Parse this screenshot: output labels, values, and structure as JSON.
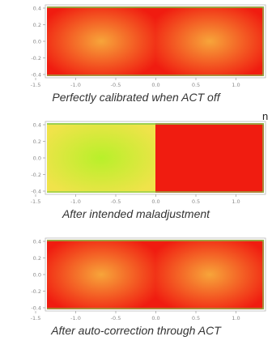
{
  "panels": [
    {
      "caption": "Perfectly calibrated when ACT off",
      "left_half": "warm",
      "right_half": "warm"
    },
    {
      "caption": "After intended maladjustment",
      "left_half": "cool",
      "right_half": "hot"
    },
    {
      "caption": "After auto-correction through ACT",
      "left_half": "warm",
      "right_half": "warm"
    }
  ],
  "axis": {
    "x_ticks": [
      "-1.5",
      "-1.0",
      "-0.5",
      "0.0",
      "0.5",
      "1.0"
    ],
    "y_ticks": [
      "0.4",
      "0.2",
      "0.0",
      "-0.2",
      "-0.4"
    ]
  },
  "cropped_text_fragment": "n",
  "colors": {
    "hot": "#f01c10",
    "warm_center": "#f7a53a",
    "cool_center": "#b8f02a",
    "cool_edge": "#f0e34a",
    "frame_green": "#7fc850"
  }
}
